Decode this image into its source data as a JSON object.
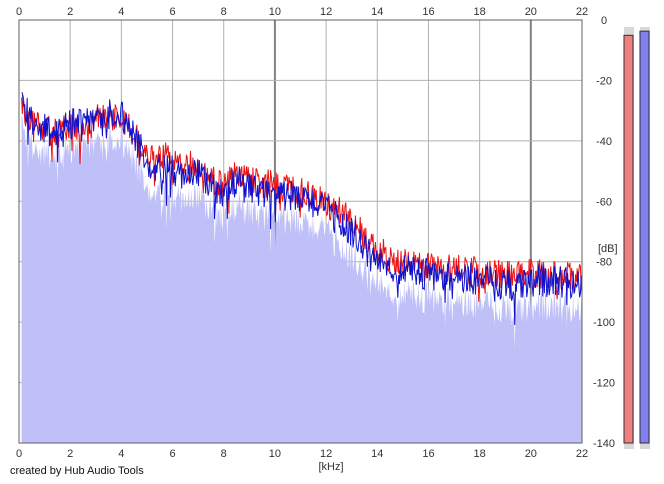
{
  "chart_data": {
    "type": "area",
    "xlabel": "[kHz]",
    "ylabel": "[dB]",
    "xlim": [
      0,
      22
    ],
    "ylim": [
      -140,
      0
    ],
    "x_ticks": [
      0,
      2,
      4,
      6,
      8,
      10,
      12,
      14,
      16,
      18,
      20,
      22
    ],
    "y_ticks": [
      0,
      -20,
      -40,
      -60,
      -80,
      -100,
      -120,
      -140
    ],
    "grid": true,
    "legend": "none",
    "colors": {
      "fill": "#c0c0f8",
      "left_channel": "#ee1111",
      "right_channel": "#1111cc",
      "grid": "#b0b0b0",
      "grid_major": "#808080"
    },
    "series": [
      {
        "color": "#ee1111",
        "x": [
          0.1,
          0.5,
          1,
          1.5,
          2,
          2.5,
          3,
          3.5,
          4,
          4.5,
          5,
          5.5,
          6,
          6.5,
          7,
          7.5,
          8,
          8.5,
          9,
          9.5,
          10,
          10.5,
          11,
          11.5,
          12,
          12.5,
          13,
          13.5,
          14,
          14.5,
          15,
          15.5,
          16,
          16.5,
          17,
          17.5,
          18,
          18.5,
          19,
          19.5,
          20,
          20.5,
          21,
          21.5,
          22
        ],
        "values": [
          -28,
          -32,
          -36,
          -38,
          -34,
          -37,
          -33,
          -31,
          -33,
          -38,
          -45,
          -46,
          -45,
          -49,
          -47,
          -52,
          -55,
          -50,
          -53,
          -54,
          -55,
          -55,
          -57,
          -58,
          -61,
          -63,
          -66,
          -72,
          -76,
          -79,
          -80,
          -81,
          -81,
          -82,
          -82,
          -82,
          -84,
          -84,
          -84,
          -85,
          -84,
          -84,
          -85,
          -85,
          -86
        ]
      },
      {
        "color": "#1111cc",
        "x": [
          0.1,
          0.5,
          1,
          1.5,
          2,
          2.5,
          3,
          3.5,
          4,
          4.5,
          5,
          5.5,
          6,
          6.5,
          7,
          7.5,
          8,
          8.5,
          9,
          9.5,
          10,
          10.5,
          11,
          11.5,
          12,
          12.5,
          13,
          13.5,
          14,
          14.5,
          15,
          15.5,
          16,
          16.5,
          17,
          17.5,
          18,
          18.5,
          19,
          19.5,
          20,
          20.5,
          21,
          21.5,
          22
        ],
        "values": [
          -27,
          -33,
          -36,
          -37,
          -34,
          -35,
          -33,
          -31,
          -32,
          -39,
          -47,
          -48,
          -49,
          -52,
          -51,
          -55,
          -57,
          -53,
          -56,
          -57,
          -58,
          -58,
          -60,
          -60,
          -63,
          -66,
          -70,
          -76,
          -80,
          -82,
          -83,
          -83,
          -84,
          -85,
          -85,
          -85,
          -86,
          -87,
          -87,
          -88,
          -87,
          -86,
          -87,
          -87,
          -88
        ]
      }
    ]
  },
  "level_meters": {
    "left": 0.98,
    "right": 0.99
  },
  "footer": {
    "credit": "created by Hub Audio Tools"
  }
}
